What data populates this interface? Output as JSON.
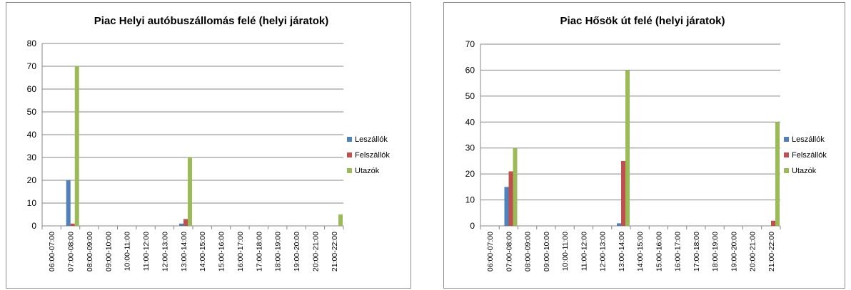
{
  "chart_data": [
    {
      "type": "bar",
      "title": "Piac Helyi autóbuszállomás felé (helyi járatok)",
      "categories": [
        "06:00-07:00",
        "07:00-08:00",
        "08:00-09:00",
        "09:00-10:00",
        "10:00-11:00",
        "11:00-12:00",
        "12:00-13:00",
        "13:00-14:00",
        "14:00-15:00",
        "15:00-16:00",
        "16:00-17:00",
        "17:00-18:00",
        "18:00-19:00",
        "19:00-20:00",
        "20:00-21:00",
        "21:00-22:00"
      ],
      "yticks": [
        "0",
        "10",
        "20",
        "30",
        "40",
        "50",
        "60",
        "70",
        "80"
      ],
      "ylim": [
        0,
        80
      ],
      "grid": true,
      "legend_position": "right",
      "series": [
        {
          "name": "Leszállók",
          "color": "#4f81bd",
          "values": [
            0,
            20,
            0,
            0,
            0,
            0,
            0,
            1,
            0,
            0,
            0,
            0,
            0,
            0,
            0,
            0
          ]
        },
        {
          "name": "Felszállók",
          "color": "#c0504d",
          "values": [
            0,
            1,
            0,
            0,
            0,
            0,
            0,
            3,
            0,
            0,
            0,
            0,
            0,
            0,
            0,
            0
          ]
        },
        {
          "name": "Utazók",
          "color": "#9bbb59",
          "values": [
            0,
            70,
            0,
            0,
            0,
            0,
            0,
            30,
            0,
            0,
            0,
            0,
            0,
            0,
            0,
            5
          ]
        }
      ]
    },
    {
      "type": "bar",
      "title": "Piac Hősök út felé (helyi járatok)",
      "categories": [
        "06:00-07:00",
        "07:00-08:00",
        "08:00-09:00",
        "09:00-10:00",
        "10:00-11:00",
        "11:00-12:00",
        "12:00-13:00",
        "13:00-14:00",
        "14:00-15:00",
        "15:00-16:00",
        "16:00-17:00",
        "17:00-18:00",
        "18:00-19:00",
        "19:00-20:00",
        "20:00-21:00",
        "21:00-22:00"
      ],
      "yticks": [
        "0",
        "10",
        "20",
        "30",
        "40",
        "50",
        "60",
        "70"
      ],
      "ylim": [
        0,
        70
      ],
      "grid": true,
      "legend_position": "right",
      "series": [
        {
          "name": "Leszállók",
          "color": "#4f81bd",
          "values": [
            0,
            15,
            0,
            0,
            0,
            0,
            0,
            1,
            0,
            0,
            0,
            0,
            0,
            0,
            0,
            0
          ]
        },
        {
          "name": "Felszállók",
          "color": "#c0504d",
          "values": [
            0,
            21,
            0,
            0,
            0,
            0,
            0,
            25,
            0,
            0,
            0,
            0,
            0,
            0,
            0,
            2
          ]
        },
        {
          "name": "Utazók",
          "color": "#9bbb59",
          "values": [
            0,
            30,
            0,
            0,
            0,
            0,
            0,
            60,
            0,
            0,
            0,
            0,
            0,
            0,
            0,
            40
          ]
        }
      ]
    }
  ]
}
